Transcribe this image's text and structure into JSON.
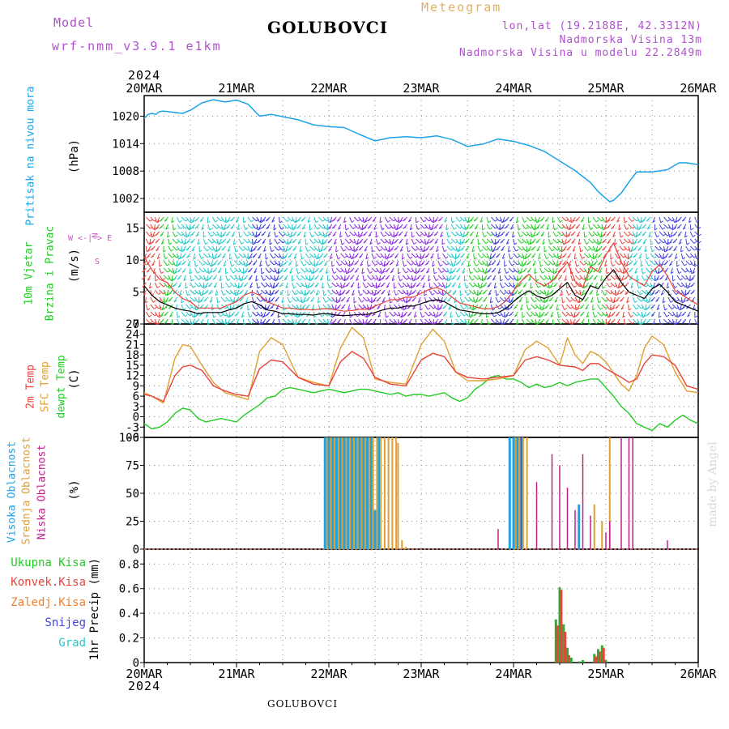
{
  "header": {
    "model_label": "Model",
    "model_name": "wrf-nmm_v3.9.1 e1km",
    "station": "GOLUBOVCI",
    "meteogram": "Meteogram",
    "lonlat": "lon,lat (19.2188E, 42.3312N)",
    "elevation": "Nadmorska Visina 13m",
    "model_elevation": "Nadmorska Visina u modelu 22.2849m",
    "year_top": "2024",
    "year_bottom": "2024",
    "footer_station": "GOLUBOVCI",
    "watermark": "made by Angel"
  },
  "colors": {
    "pressure": "#1aa3e8",
    "wind_speed": "#000000",
    "wind_gust": "#e8433a",
    "temp_2m": "#e8433a",
    "temp_sfc": "#e0a030",
    "dewpoint": "#22cc22",
    "high_cloud": "#1aa3e8",
    "mid_cloud": "#e0a030",
    "low_cloud": "#c0208a",
    "total_precip": "#33aa33",
    "conv_precip": "#e8433a",
    "frozen_precip": "#f08030",
    "snow": "#4444dd",
    "hail": "#22c8c8",
    "wind_label": "#cc55cc"
  },
  "chart_data": [
    {
      "type": "line",
      "panel": "pressure",
      "label": "Pritisak na nivou mora",
      "unit": "(hPa)",
      "x_ticks": [
        "20MAR",
        "21MAR",
        "22MAR",
        "23MAR",
        "24MAR",
        "25MAR",
        "26MAR"
      ],
      "y_ticks": [
        "1002",
        "1008",
        "1014",
        "1020"
      ],
      "ylim": [
        999,
        1024.5
      ],
      "grid": true,
      "series": [
        {
          "x": [
            0,
            1,
            2,
            3,
            4,
            5,
            6,
            8,
            10,
            12,
            15,
            18,
            21,
            24,
            27,
            30,
            33,
            36,
            40,
            44,
            48,
            52,
            56,
            60,
            64,
            68,
            72,
            76,
            80,
            84,
            88,
            92,
            96,
            100,
            104,
            108,
            112,
            116,
            118,
            120,
            121,
            122,
            124,
            126,
            128,
            132,
            136,
            139,
            141,
            144
          ],
          "values": [
            1019.5,
            1020.4,
            1020.6,
            1020.4,
            1021.0,
            1021.1,
            1021.0,
            1020.8,
            1020.6,
            1021.3,
            1022.9,
            1023.6,
            1023.1,
            1023.5,
            1022.6,
            1020.0,
            1020.4,
            1019.9,
            1019.2,
            1018.1,
            1017.7,
            1017.5,
            1016.0,
            1014.6,
            1015.3,
            1015.5,
            1015.3,
            1015.7,
            1014.9,
            1013.4,
            1013.9,
            1015.0,
            1014.5,
            1013.6,
            1012.3,
            1010.2,
            1008.1,
            1005.5,
            1003.5,
            1002.0,
            1001.3,
            1001.6,
            1003.2,
            1005.6,
            1007.8,
            1007.8,
            1008.3,
            1009.8,
            1009.8,
            1009.4
          ]
        }
      ]
    },
    {
      "type": "line",
      "panel": "wind",
      "label": "10m Vjetar",
      "label2": "Brzina i Pravac",
      "unit": "(m/s)",
      "direction_legend": [
        "N",
        "W <-|-> E",
        "S"
      ],
      "y_ticks": [
        "0",
        "5",
        "10",
        "15"
      ],
      "ylim": [
        0,
        17.5
      ],
      "grid": true,
      "series": [
        {
          "x": [
            0,
            2,
            4,
            6,
            8,
            10,
            12,
            14,
            16,
            18,
            20,
            22,
            24,
            26,
            28,
            30,
            32,
            34,
            36,
            38,
            40,
            42,
            44,
            46,
            48,
            50,
            52,
            54,
            56,
            58,
            60,
            62,
            64,
            66,
            68,
            70,
            72,
            74,
            76,
            78,
            80,
            82,
            84,
            86,
            88,
            90,
            92,
            94,
            96,
            98,
            100,
            102,
            104,
            106,
            108,
            110,
            112,
            114,
            116,
            118,
            120,
            122,
            124,
            126,
            128,
            130,
            132,
            134,
            136,
            138,
            140,
            142,
            144
          ],
          "values": [
            6.0,
            4.5,
            3.5,
            3.0,
            2.5,
            2.2,
            2.0,
            1.6,
            1.8,
            1.8,
            1.8,
            2.2,
            2.5,
            3.2,
            3.5,
            3.0,
            2.2,
            2.0,
            1.6,
            1.6,
            1.5,
            1.5,
            1.4,
            1.6,
            1.6,
            1.4,
            1.3,
            1.4,
            1.5,
            1.5,
            1.8,
            2.2,
            2.5,
            2.5,
            2.8,
            2.8,
            3.2,
            3.6,
            3.8,
            3.5,
            2.8,
            2.2,
            2.0,
            1.8,
            1.6,
            1.6,
            1.8,
            2.4,
            3.5,
            4.5,
            5.2,
            4.4,
            4.0,
            4.5,
            5.5,
            6.5,
            4.5,
            3.8,
            6.0,
            5.5,
            7.2,
            8.5,
            6.5,
            5.0,
            4.5,
            4.0,
            5.5,
            6.2,
            5.0,
            3.5,
            3.0,
            2.5,
            2.0
          ]
        },
        {
          "x": [
            0,
            2,
            4,
            6,
            8,
            10,
            12,
            14,
            16,
            18,
            20,
            22,
            24,
            26,
            28,
            30,
            32,
            34,
            36,
            38,
            40,
            42,
            44,
            46,
            48,
            50,
            52,
            54,
            56,
            58,
            60,
            62,
            64,
            66,
            68,
            70,
            72,
            74,
            76,
            78,
            80,
            82,
            84,
            86,
            88,
            90,
            92,
            94,
            96,
            98,
            100,
            102,
            104,
            106,
            108,
            110,
            112,
            114,
            116,
            118,
            120,
            122,
            124,
            126,
            128,
            130,
            132,
            134,
            136,
            138,
            140,
            142,
            144
          ],
          "values": [
            10.5,
            8.5,
            7.0,
            6.5,
            5.0,
            4.0,
            3.5,
            2.5,
            2.5,
            2.5,
            2.5,
            3.0,
            3.5,
            4.5,
            5.0,
            4.5,
            3.5,
            3.0,
            2.5,
            2.5,
            2.3,
            2.3,
            2.2,
            2.4,
            2.4,
            2.2,
            2.0,
            2.1,
            2.3,
            2.3,
            2.8,
            3.3,
            3.8,
            3.8,
            4.2,
            4.2,
            4.8,
            5.4,
            5.7,
            5.2,
            4.2,
            3.3,
            3.0,
            2.7,
            2.4,
            2.4,
            2.7,
            3.6,
            5.2,
            6.7,
            7.8,
            6.6,
            6.0,
            6.7,
            8.2,
            9.7,
            6.7,
            5.7,
            9.0,
            8.2,
            10.8,
            12.7,
            9.7,
            7.5,
            6.7,
            6.0,
            8.2,
            9.3,
            7.5,
            5.2,
            4.5,
            3.7,
            3.0
          ]
        }
      ]
    },
    {
      "type": "line",
      "panel": "temperature",
      "labels": [
        "2m Temp",
        "SFC Temp",
        "dewpt Temp"
      ],
      "unit": "(C)",
      "y_ticks": [
        "-6",
        "-3",
        "0",
        "3",
        "6",
        "9",
        "12",
        "15",
        "18",
        "21",
        "24",
        "27"
      ],
      "ylim": [
        -6,
        27
      ],
      "grid": true,
      "series": [
        {
          "name": "2m Temp",
          "x": [
            0,
            2,
            5,
            8,
            10,
            12,
            15,
            18,
            21,
            24,
            27,
            30,
            33,
            36,
            40,
            44,
            48,
            51,
            54,
            57,
            60,
            64,
            68,
            72,
            75,
            78,
            81,
            84,
            88,
            92,
            96,
            99,
            102,
            105,
            108,
            112,
            114,
            116,
            118,
            120,
            124,
            126,
            128,
            130,
            132,
            135,
            138,
            141,
            144
          ],
          "values": [
            6.5,
            6.0,
            4.5,
            12.0,
            14.5,
            15.0,
            13.5,
            9.0,
            7.5,
            6.5,
            6.0,
            14.0,
            16.5,
            16.0,
            11.5,
            9.5,
            9.0,
            16.0,
            19.0,
            17.0,
            11.5,
            9.5,
            9.0,
            16.5,
            18.5,
            17.5,
            13.0,
            11.5,
            11.0,
            11.5,
            12.0,
            16.5,
            17.5,
            16.5,
            15.0,
            14.5,
            13.5,
            15.5,
            15.5,
            14.0,
            11.5,
            10.0,
            11.0,
            15.5,
            18.0,
            17.5,
            15.0,
            9.0,
            8.0
          ]
        },
        {
          "name": "SFC Temp",
          "x": [
            0,
            2,
            5,
            8,
            10,
            12,
            15,
            18,
            21,
            24,
            27,
            30,
            33,
            36,
            40,
            44,
            48,
            51,
            54,
            57,
            60,
            64,
            68,
            72,
            75,
            78,
            81,
            84,
            88,
            92,
            96,
            99,
            102,
            105,
            108,
            110,
            112,
            114,
            116,
            118,
            120,
            124,
            126,
            128,
            130,
            132,
            135,
            138,
            141,
            144
          ],
          "values": [
            7.0,
            6.0,
            4.0,
            17.0,
            21.0,
            20.5,
            15.0,
            10.0,
            7.0,
            6.0,
            5.0,
            19.0,
            23.0,
            21.0,
            11.5,
            10.0,
            9.0,
            20.0,
            26.0,
            23.0,
            11.0,
            10.0,
            9.5,
            21.0,
            25.5,
            22.0,
            13.0,
            10.5,
            10.5,
            11.0,
            12.0,
            19.5,
            22.0,
            20.0,
            15.0,
            23.0,
            18.0,
            15.5,
            19.0,
            18.0,
            16.0,
            9.5,
            7.5,
            12.0,
            20.0,
            23.5,
            21.0,
            13.0,
            7.5,
            7.0
          ]
        },
        {
          "name": "dewpt Temp",
          "x": [
            0,
            2,
            4,
            6,
            8,
            10,
            12,
            14,
            16,
            18,
            20,
            22,
            24,
            26,
            28,
            30,
            32,
            34,
            36,
            38,
            40,
            42,
            44,
            46,
            48,
            50,
            52,
            54,
            56,
            58,
            60,
            62,
            64,
            66,
            68,
            70,
            72,
            74,
            76,
            78,
            80,
            82,
            84,
            86,
            88,
            90,
            92,
            94,
            96,
            98,
            100,
            102,
            104,
            106,
            108,
            110,
            112,
            114,
            116,
            118,
            120,
            122,
            124,
            126,
            128,
            130,
            132,
            134,
            136,
            138,
            140,
            142,
            144
          ],
          "values": [
            -2.0,
            -3.5,
            -3.0,
            -1.5,
            1.0,
            2.5,
            2.0,
            -0.5,
            -1.5,
            -1.0,
            -0.5,
            -1.0,
            -1.5,
            0.5,
            2.0,
            3.5,
            5.5,
            6.0,
            8.0,
            8.5,
            8.0,
            7.5,
            7.0,
            7.5,
            8.0,
            7.5,
            7.0,
            7.5,
            8.0,
            8.0,
            7.5,
            7.0,
            6.5,
            7.0,
            6.0,
            6.5,
            6.5,
            6.0,
            6.5,
            7.0,
            5.5,
            4.5,
            5.5,
            8.0,
            9.5,
            11.5,
            12.0,
            11.0,
            11.0,
            10.0,
            8.5,
            9.5,
            8.5,
            9.0,
            10.0,
            9.0,
            10.0,
            10.5,
            11.0,
            11.0,
            8.5,
            6.0,
            3.0,
            1.0,
            -2.0,
            -3.0,
            -4.0,
            -2.0,
            -3.0,
            -1.0,
            0.5,
            -1.0,
            -2.0
          ]
        }
      ]
    },
    {
      "type": "bar",
      "panel": "cloud",
      "labels": [
        "Visoka Oblacnost",
        "Srednja Oblacnost",
        "Niska Oblacnost"
      ],
      "unit": "(%)",
      "y_ticks": [
        "0",
        "25",
        "50",
        "75",
        "100"
      ],
      "ylim": [
        0,
        100
      ],
      "grid": true,
      "series": [
        {
          "name": "Visoka Oblacnost",
          "x": [
            47,
            48,
            49,
            50,
            51,
            52,
            53,
            54,
            55,
            56,
            57,
            58,
            59,
            60,
            61,
            95,
            96,
            97,
            98,
            113
          ],
          "values": [
            100,
            100,
            100,
            100,
            100,
            100,
            100,
            100,
            100,
            100,
            100,
            100,
            100,
            35,
            100,
            100,
            100,
            100,
            100,
            40
          ]
        },
        {
          "name": "Srednja Oblacnost",
          "x": [
            47.5,
            48.5,
            49.5,
            50.5,
            51.5,
            52.5,
            53.5,
            54.5,
            55.5,
            56.5,
            57.5,
            58.5,
            59.5,
            60.5,
            61.5,
            62.5,
            63.5,
            64.5,
            65.5,
            66,
            67,
            68,
            96.5,
            97.5,
            98.5,
            99.5,
            117,
            119,
            121
          ],
          "values": [
            100,
            100,
            100,
            100,
            100,
            100,
            100,
            100,
            100,
            100,
            100,
            100,
            100,
            100,
            100,
            100,
            100,
            100,
            100,
            95,
            8,
            2,
            100,
            100,
            100,
            100,
            40,
            25,
            100
          ]
        },
        {
          "name": "Niska Oblacnost",
          "x": [
            92,
            98,
            102,
            106,
            108,
            110,
            112,
            114,
            116,
            120,
            121,
            124,
            126,
            127,
            136
          ],
          "values": [
            18,
            100,
            60,
            85,
            75,
            55,
            35,
            85,
            30,
            15,
            25,
            100,
            100,
            100,
            8
          ]
        }
      ]
    },
    {
      "type": "bar",
      "panel": "precip",
      "labels": [
        "Ukupna Kisa",
        "Konvek.Kisa",
        "Zaledj.Kisa",
        "Snijeg",
        "Grad"
      ],
      "unit": "1hr Precip (mm)",
      "x_ticks": [
        "20MAR",
        "21MAR",
        "22MAR",
        "23MAR",
        "24MAR",
        "25MAR",
        "26MAR"
      ],
      "y_ticks": [
        "0",
        "0.2",
        "0.4",
        "0.6",
        "0.8"
      ],
      "ylim": [
        0,
        0.92
      ],
      "grid": true,
      "series": [
        {
          "name": "Ukupna Kisa",
          "x": [
            107,
            108,
            109,
            110,
            111,
            113,
            114,
            117,
            118,
            119,
            120
          ],
          "values": [
            0.35,
            0.61,
            0.31,
            0.12,
            0.04,
            0.01,
            0.02,
            0.07,
            0.11,
            0.14,
            0.02
          ]
        },
        {
          "name": "Konvek.Kisa",
          "x": [
            107.4,
            108.4,
            109.4,
            110.4,
            117.4,
            118.4,
            119.4
          ],
          "values": [
            0.3,
            0.59,
            0.25,
            0.06,
            0.05,
            0.09,
            0.12
          ]
        }
      ]
    }
  ]
}
